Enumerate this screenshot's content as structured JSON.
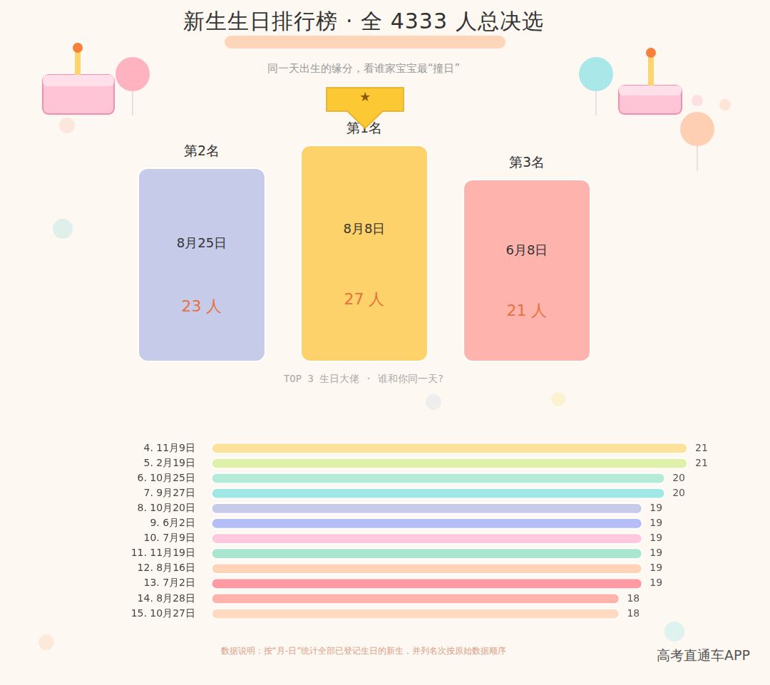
{
  "header": {
    "title": "新生生日排行榜 · 全 4333 人总决选",
    "subtitle": "同一天出生的缘分，看谁家宝宝最“撞日”"
  },
  "podium": {
    "crown": "★",
    "unit": "人",
    "caption": "TOP 3 生日大佬 · 谁和你同一天?",
    "places": [
      {
        "rank_label": "第1名",
        "date": "8月8日",
        "count": 27,
        "color": "#fdd26b"
      },
      {
        "rank_label": "第2名",
        "date": "8月25日",
        "count": 23,
        "color": "#c5cbe9"
      },
      {
        "rank_label": "第3名",
        "date": "6月8日",
        "count": 21,
        "color": "#ffb3ad"
      }
    ]
  },
  "chart_data": {
    "type": "bar",
    "orientation": "horizontal",
    "categories": [
      "4. 11月9日",
      "5. 2月19日",
      "6. 10月25日",
      "7. 9月27日",
      "8. 10月20日",
      "9. 6月2日",
      "10. 7月9日",
      "11. 11月19日",
      "12. 8月16日",
      "13. 7月2日",
      "14. 8月28日",
      "15. 10月27日"
    ],
    "values": [
      21,
      21,
      20,
      20,
      19,
      19,
      19,
      19,
      19,
      19,
      18,
      18
    ],
    "colors": [
      "#fde29c",
      "#dff0a8",
      "#b5ead7",
      "#a0e7e5",
      "#c7cae8",
      "#b4bdf6",
      "#ffc8dd",
      "#a8e6cf",
      "#ffd3b6",
      "#ff9aa2",
      "#ffb3ab",
      "#ffdac1"
    ],
    "xlim": [
      0,
      21
    ],
    "grid": false,
    "tick_labels": "y",
    "data_labels": true
  },
  "footer": {
    "note": "数据说明：按“月-日”统计全部已登记生日的新生，并列名次按原始数据顺序",
    "watermark": "高考直通车APP"
  }
}
